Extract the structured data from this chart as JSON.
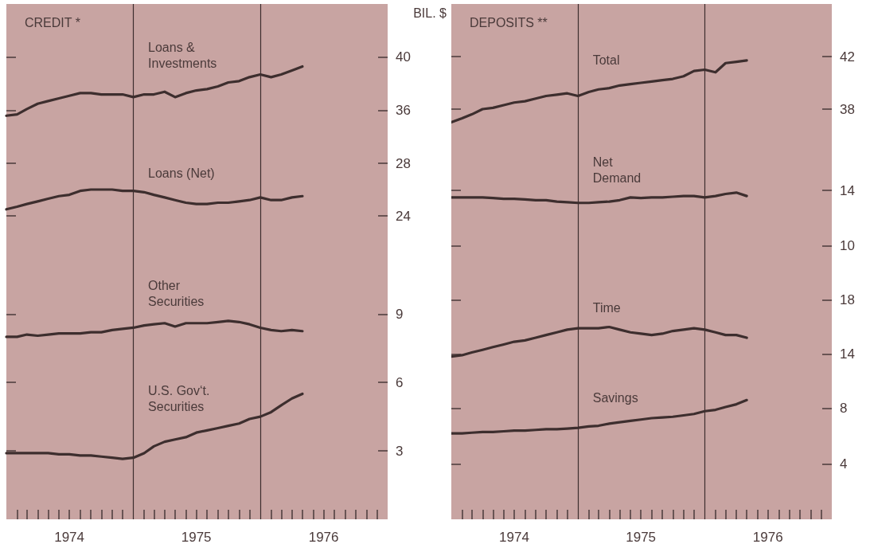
{
  "chart_data": [
    {
      "type": "line",
      "title": "CREDIT *",
      "ylabel": "BIL. $",
      "x": [
        "1974-01",
        "1974-02",
        "1974-03",
        "1974-04",
        "1974-05",
        "1974-06",
        "1974-07",
        "1974-08",
        "1974-09",
        "1974-10",
        "1974-11",
        "1974-12",
        "1975-01",
        "1975-02",
        "1975-03",
        "1975-04",
        "1975-05",
        "1975-06",
        "1975-07",
        "1975-08",
        "1975-09",
        "1975-10",
        "1975-11",
        "1975-12",
        "1976-01",
        "1976-02",
        "1976-03",
        "1976-04",
        "1976-05"
      ],
      "xlim": [
        "1974-01",
        "1977-01"
      ],
      "ylim": [
        34,
        44
      ],
      "yticks": [
        36,
        40
      ],
      "tick_labels": "y",
      "ref_lines": [
        {
          "axis": "x",
          "value": "1975-01",
          "color": "#3d2e2e"
        },
        {
          "axis": "x",
          "value": "1976-01",
          "color": "#3d2e2e"
        }
      ],
      "series": [
        {
          "name": "Loans & Investments",
          "color": "#3d2e2e",
          "values": [
            35.6,
            35.7,
            36.1,
            36.5,
            36.7,
            36.9,
            37.1,
            37.3,
            37.3,
            37.2,
            37.2,
            37.2,
            37.0,
            37.2,
            37.2,
            37.4,
            37.0,
            37.3,
            37.5,
            37.6,
            37.8,
            38.1,
            38.2,
            38.5,
            38.7,
            38.5,
            38.7,
            39.0,
            39.3
          ]
        }
      ]
    },
    {
      "type": "line",
      "x": [
        "1974-01",
        "1974-02",
        "1974-03",
        "1974-04",
        "1974-05",
        "1974-06",
        "1974-07",
        "1974-08",
        "1974-09",
        "1974-10",
        "1974-11",
        "1974-12",
        "1975-01",
        "1975-02",
        "1975-03",
        "1975-04",
        "1975-05",
        "1975-06",
        "1975-07",
        "1975-08",
        "1975-09",
        "1975-10",
        "1975-11",
        "1975-12",
        "1976-01",
        "1976-02",
        "1976-03",
        "1976-04",
        "1976-05"
      ],
      "xlim": [
        "1974-01",
        "1977-01"
      ],
      "ylim": [
        20,
        30
      ],
      "yticks": [
        24,
        28
      ],
      "tick_labels": "y",
      "ref_lines": [
        {
          "axis": "x",
          "value": "1975-01",
          "color": "#3d2e2e"
        },
        {
          "axis": "x",
          "value": "1976-01",
          "color": "#3d2e2e"
        }
      ],
      "series": [
        {
          "name": "Loans (Net)",
          "color": "#3d2e2e",
          "values": [
            24.5,
            24.7,
            24.9,
            25.1,
            25.3,
            25.5,
            25.6,
            25.9,
            26.0,
            26.0,
            26.0,
            25.9,
            25.9,
            25.8,
            25.6,
            25.4,
            25.2,
            25.0,
            24.9,
            24.9,
            25.0,
            25.0,
            25.1,
            25.2,
            25.4,
            25.2,
            25.2,
            25.4,
            25.5
          ]
        }
      ]
    },
    {
      "type": "line",
      "x": [
        "1974-01",
        "1974-02",
        "1974-03",
        "1974-04",
        "1974-05",
        "1974-06",
        "1974-07",
        "1974-08",
        "1974-09",
        "1974-10",
        "1974-11",
        "1974-12",
        "1975-01",
        "1975-02",
        "1975-03",
        "1975-04",
        "1975-05",
        "1975-06",
        "1975-07",
        "1975-08",
        "1975-09",
        "1975-10",
        "1975-11",
        "1975-12",
        "1976-01",
        "1976-02",
        "1976-03",
        "1976-04",
        "1976-05"
      ],
      "xlim": [
        "1974-01",
        "1977-01"
      ],
      "ylim": [
        0,
        11
      ],
      "yticks": [
        3,
        6,
        9
      ],
      "ref_lines": [
        {
          "axis": "x",
          "value": "1975-01",
          "color": "#3d2e2e"
        },
        {
          "axis": "x",
          "value": "1976-01",
          "color": "#3d2e2e"
        }
      ],
      "xticks": [
        {
          "value": "1974-02",
          "label": null
        },
        {
          "value": "1974-03",
          "label": null
        },
        {
          "value": "1974-04",
          "label": null
        },
        {
          "value": "1974-05",
          "label": null
        },
        {
          "value": "1974-06",
          "label": null
        },
        {
          "value": "1974-07",
          "label": "1974"
        },
        {
          "value": "1974-08",
          "label": null
        },
        {
          "value": "1974-09",
          "label": null
        },
        {
          "value": "1974-10",
          "label": null
        },
        {
          "value": "1974-11",
          "label": null
        },
        {
          "value": "1974-12",
          "label": null
        },
        {
          "value": "1975-02",
          "label": null
        },
        {
          "value": "1975-03",
          "label": null
        },
        {
          "value": "1975-04",
          "label": null
        },
        {
          "value": "1975-05",
          "label": null
        },
        {
          "value": "1975-06",
          "label": null
        },
        {
          "value": "1975-07",
          "label": "1975"
        },
        {
          "value": "1975-08",
          "label": null
        },
        {
          "value": "1975-09",
          "label": null
        },
        {
          "value": "1975-10",
          "label": null
        },
        {
          "value": "1975-11",
          "label": null
        },
        {
          "value": "1975-12",
          "label": null
        },
        {
          "value": "1976-02",
          "label": null
        },
        {
          "value": "1976-03",
          "label": null
        },
        {
          "value": "1976-04",
          "label": null
        },
        {
          "value": "1976-05",
          "label": null
        },
        {
          "value": "1976-06",
          "label": null
        },
        {
          "value": "1976-07",
          "label": "1976"
        },
        {
          "value": "1976-08",
          "label": null
        },
        {
          "value": "1976-09",
          "label": null
        },
        {
          "value": "1976-10",
          "label": null
        },
        {
          "value": "1976-11",
          "label": null
        },
        {
          "value": "1976-12",
          "label": null
        }
      ],
      "series": [
        {
          "name": "Other Securities",
          "color": "#3d2e2e",
          "values": [
            8.0,
            8.0,
            8.1,
            8.05,
            8.1,
            8.15,
            8.15,
            8.15,
            8.2,
            8.2,
            8.3,
            8.35,
            8.4,
            8.5,
            8.55,
            8.6,
            8.45,
            8.6,
            8.6,
            8.6,
            8.65,
            8.7,
            8.65,
            8.55,
            8.4,
            8.3,
            8.25,
            8.3,
            8.25
          ]
        },
        {
          "name": "U.S. Gov‘t. Securities",
          "color": "#3d2e2e",
          "values": [
            2.9,
            2.9,
            2.9,
            2.9,
            2.9,
            2.85,
            2.85,
            2.8,
            2.8,
            2.75,
            2.7,
            2.65,
            2.7,
            2.9,
            3.2,
            3.4,
            3.5,
            3.6,
            3.8,
            3.9,
            4.0,
            4.1,
            4.2,
            4.4,
            4.5,
            4.7,
            5.0,
            5.3,
            5.5
          ]
        }
      ]
    },
    {
      "type": "line",
      "title": "DEPOSITS **",
      "x": [
        "1974-01",
        "1974-02",
        "1974-03",
        "1974-04",
        "1974-05",
        "1974-06",
        "1974-07",
        "1974-08",
        "1974-09",
        "1974-10",
        "1974-11",
        "1974-12",
        "1975-01",
        "1975-02",
        "1975-03",
        "1975-04",
        "1975-05",
        "1975-06",
        "1975-07",
        "1975-08",
        "1975-09",
        "1975-10",
        "1975-11",
        "1975-12",
        "1976-01",
        "1976-02",
        "1976-03",
        "1976-04",
        "1976-05"
      ],
      "xlim": [
        "1974-01",
        "1977-01"
      ],
      "ylim": [
        36,
        46
      ],
      "yticks": [
        38,
        42
      ],
      "tick_labels": "y",
      "ref_lines": [
        {
          "axis": "x",
          "value": "1975-01",
          "color": "#3d2e2e"
        },
        {
          "axis": "x",
          "value": "1976-01",
          "color": "#3d2e2e"
        }
      ],
      "series": [
        {
          "name": "Total",
          "color": "#3d2e2e",
          "values": [
            37.0,
            37.3,
            37.6,
            38.0,
            38.1,
            38.3,
            38.5,
            38.6,
            38.8,
            39.0,
            39.1,
            39.2,
            39.0,
            39.3,
            39.5,
            39.6,
            39.8,
            39.9,
            40.0,
            40.1,
            40.2,
            40.3,
            40.5,
            40.9,
            41.0,
            40.8,
            41.5,
            41.6,
            41.7
          ]
        }
      ]
    },
    {
      "type": "line",
      "x": [
        "1974-01",
        "1974-02",
        "1974-03",
        "1974-04",
        "1974-05",
        "1974-06",
        "1974-07",
        "1974-08",
        "1974-09",
        "1974-10",
        "1974-11",
        "1974-12",
        "1975-01",
        "1975-02",
        "1975-03",
        "1975-04",
        "1975-05",
        "1975-06",
        "1975-07",
        "1975-08",
        "1975-09",
        "1975-10",
        "1975-11",
        "1975-12",
        "1976-01",
        "1976-02",
        "1976-03",
        "1976-04",
        "1976-05"
      ],
      "xlim": [
        "1974-01",
        "1977-01"
      ],
      "ylim": [
        8,
        18
      ],
      "yticks": [
        10,
        14
      ],
      "tick_labels": "y",
      "ref_lines": [
        {
          "axis": "x",
          "value": "1975-01",
          "color": "#3d2e2e"
        },
        {
          "axis": "x",
          "value": "1976-01",
          "color": "#3d2e2e"
        }
      ],
      "series": [
        {
          "name": "Net Demand",
          "color": "#3d2e2e",
          "values": [
            13.5,
            13.5,
            13.5,
            13.5,
            13.45,
            13.4,
            13.4,
            13.35,
            13.3,
            13.3,
            13.2,
            13.15,
            13.1,
            13.1,
            13.15,
            13.2,
            13.3,
            13.5,
            13.45,
            13.5,
            13.5,
            13.55,
            13.6,
            13.6,
            13.5,
            13.6,
            13.75,
            13.85,
            13.6
          ]
        }
      ]
    },
    {
      "type": "line",
      "x": [
        "1974-01",
        "1974-02",
        "1974-03",
        "1974-04",
        "1974-05",
        "1974-06",
        "1974-07",
        "1974-08",
        "1974-09",
        "1974-10",
        "1974-11",
        "1974-12",
        "1975-01",
        "1975-02",
        "1975-03",
        "1975-04",
        "1975-05",
        "1975-06",
        "1975-07",
        "1975-08",
        "1975-09",
        "1975-10",
        "1975-11",
        "1975-12",
        "1976-01",
        "1976-02",
        "1976-03",
        "1976-04",
        "1976-05"
      ],
      "xlim": [
        "1974-01",
        "1977-01"
      ],
      "ylim": [
        12,
        20
      ],
      "yticks": [
        14,
        18
      ],
      "tick_labels": "y",
      "ref_lines": [
        {
          "axis": "x",
          "value": "1975-01",
          "color": "#3d2e2e"
        },
        {
          "axis": "x",
          "value": "1976-01",
          "color": "#3d2e2e"
        }
      ],
      "series": [
        {
          "name": "Time",
          "color": "#3d2e2e",
          "values": [
            13.8,
            13.9,
            14.1,
            14.3,
            14.5,
            14.7,
            14.9,
            15.0,
            15.2,
            15.4,
            15.6,
            15.8,
            15.9,
            15.9,
            15.9,
            16.0,
            15.8,
            15.6,
            15.5,
            15.4,
            15.5,
            15.7,
            15.8,
            15.9,
            15.8,
            15.6,
            15.4,
            15.4,
            15.2
          ]
        }
      ]
    },
    {
      "type": "line",
      "x": [
        "1974-01",
        "1974-02",
        "1974-03",
        "1974-04",
        "1974-05",
        "1974-06",
        "1974-07",
        "1974-08",
        "1974-09",
        "1974-10",
        "1974-11",
        "1974-12",
        "1975-01",
        "1975-02",
        "1975-03",
        "1975-04",
        "1975-05",
        "1975-06",
        "1975-07",
        "1975-08",
        "1975-09",
        "1975-10",
        "1975-11",
        "1975-12",
        "1976-01",
        "1976-02",
        "1976-03",
        "1976-04",
        "1976-05"
      ],
      "xlim": [
        "1974-01",
        "1977-01"
      ],
      "ylim": [
        0,
        10
      ],
      "yticks": [
        4,
        8
      ],
      "ref_lines": [
        {
          "axis": "x",
          "value": "1975-01",
          "color": "#3d2e2e"
        },
        {
          "axis": "x",
          "value": "1976-01",
          "color": "#3d2e2e"
        }
      ],
      "xticks": [
        {
          "value": "1974-02",
          "label": null
        },
        {
          "value": "1974-03",
          "label": null
        },
        {
          "value": "1974-04",
          "label": null
        },
        {
          "value": "1974-05",
          "label": null
        },
        {
          "value": "1974-06",
          "label": null
        },
        {
          "value": "1974-07",
          "label": "1974"
        },
        {
          "value": "1974-08",
          "label": null
        },
        {
          "value": "1974-09",
          "label": null
        },
        {
          "value": "1974-10",
          "label": null
        },
        {
          "value": "1974-11",
          "label": null
        },
        {
          "value": "1974-12",
          "label": null
        },
        {
          "value": "1975-02",
          "label": null
        },
        {
          "value": "1975-03",
          "label": null
        },
        {
          "value": "1975-04",
          "label": null
        },
        {
          "value": "1975-05",
          "label": null
        },
        {
          "value": "1975-06",
          "label": null
        },
        {
          "value": "1975-07",
          "label": "1975"
        },
        {
          "value": "1975-08",
          "label": null
        },
        {
          "value": "1975-09",
          "label": null
        },
        {
          "value": "1975-10",
          "label": null
        },
        {
          "value": "1975-11",
          "label": null
        },
        {
          "value": "1975-12",
          "label": null
        },
        {
          "value": "1976-02",
          "label": null
        },
        {
          "value": "1976-03",
          "label": null
        },
        {
          "value": "1976-04",
          "label": null
        },
        {
          "value": "1976-05",
          "label": null
        },
        {
          "value": "1976-06",
          "label": null
        },
        {
          "value": "1976-07",
          "label": "1976"
        },
        {
          "value": "1976-08",
          "label": null
        },
        {
          "value": "1976-09",
          "label": null
        },
        {
          "value": "1976-10",
          "label": null
        },
        {
          "value": "1976-11",
          "label": null
        },
        {
          "value": "1976-12",
          "label": null
        }
      ],
      "series": [
        {
          "name": "Savings",
          "color": "#3d2e2e",
          "values": [
            6.2,
            6.2,
            6.25,
            6.3,
            6.3,
            6.35,
            6.4,
            6.4,
            6.45,
            6.5,
            6.5,
            6.55,
            6.6,
            6.7,
            6.75,
            6.9,
            7.0,
            7.1,
            7.2,
            7.3,
            7.35,
            7.4,
            7.5,
            7.6,
            7.8,
            7.9,
            8.1,
            8.3,
            8.6
          ]
        }
      ]
    }
  ]
}
